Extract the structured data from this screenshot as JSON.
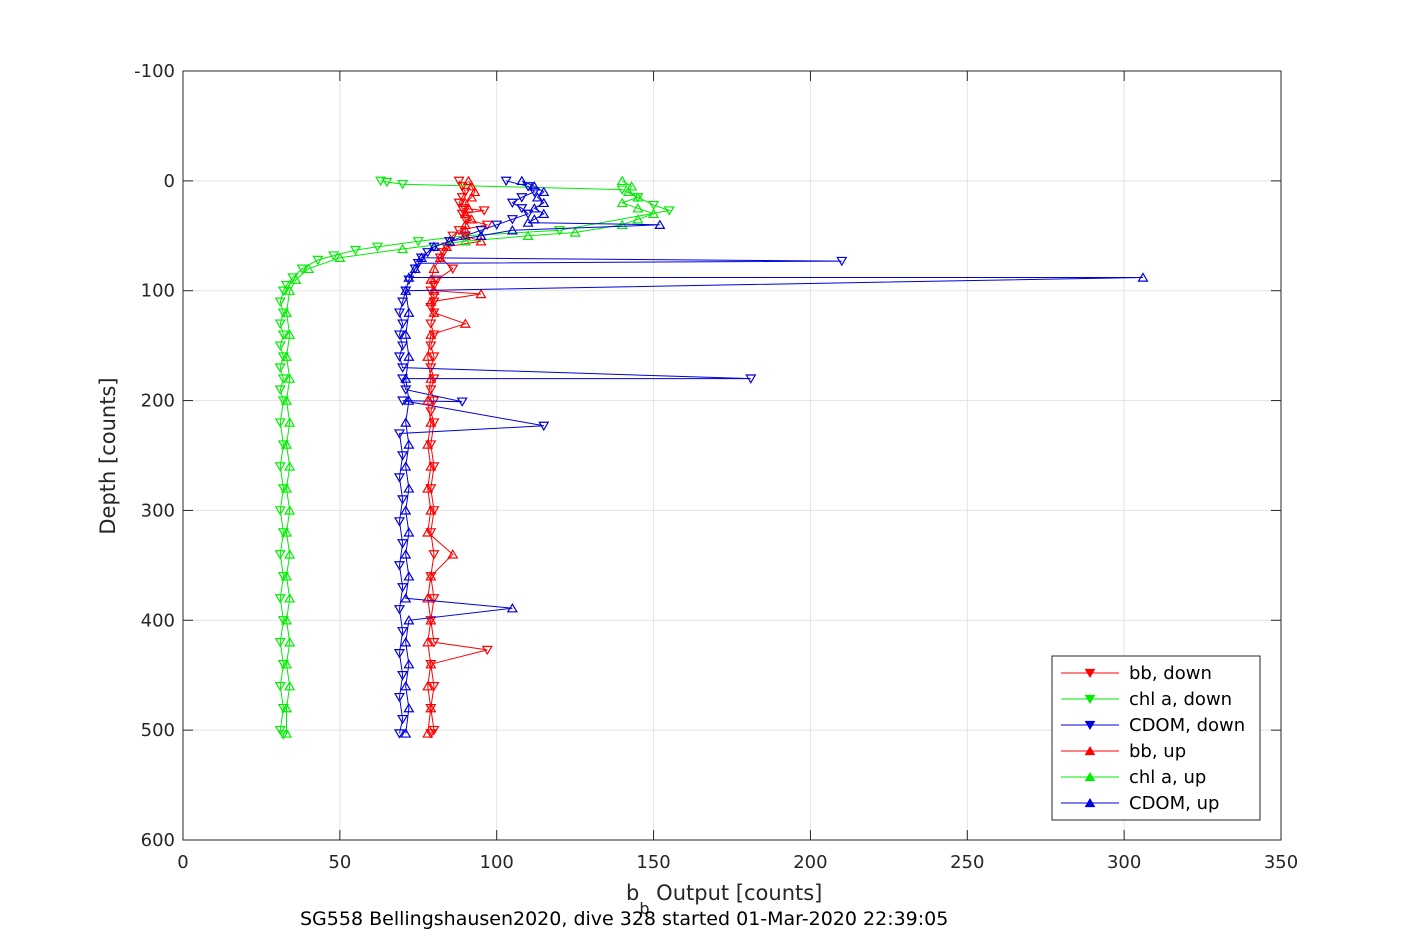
{
  "chart_data": {
    "type": "line",
    "xlabel_base": "b",
    "xlabel_sub": "b",
    "xlabel_rest": " Output [counts]",
    "ylabel": "Depth [counts]",
    "footer": "SG558 Bellingshausen2020, dive 328 started 01-Mar-2020 22:39:05",
    "xlim": [
      0,
      350
    ],
    "ylim": [
      -100,
      600
    ],
    "y_reversed": true,
    "grid": true,
    "legend_position": "bottom-right",
    "xticks": [
      "0",
      "50",
      "100",
      "150",
      "200",
      "250",
      "300",
      "350"
    ],
    "yticks": [
      "-100",
      "0",
      "100",
      "200",
      "300",
      "400",
      "500",
      "600"
    ],
    "series": [
      {
        "name": "bb, down",
        "color": "#ff0000",
        "marker": "triangle-down",
        "points": [
          [
            88,
            0
          ],
          [
            89,
            5
          ],
          [
            90,
            10
          ],
          [
            89,
            15
          ],
          [
            88,
            20
          ],
          [
            89,
            25
          ],
          [
            96,
            27
          ],
          [
            89,
            30
          ],
          [
            90,
            35
          ],
          [
            97,
            40
          ],
          [
            88,
            45
          ],
          [
            86,
            50
          ],
          [
            85,
            55
          ],
          [
            84,
            60
          ],
          [
            83,
            65
          ],
          [
            82,
            70
          ],
          [
            86,
            80
          ],
          [
            81,
            90
          ],
          [
            80,
            95
          ],
          [
            79,
            100
          ],
          [
            80,
            105
          ],
          [
            80,
            110
          ],
          [
            79,
            115
          ],
          [
            80,
            120
          ],
          [
            79,
            130
          ],
          [
            80,
            140
          ],
          [
            79,
            150
          ],
          [
            80,
            160
          ],
          [
            79,
            170
          ],
          [
            80,
            180
          ],
          [
            79,
            190
          ],
          [
            80,
            200
          ],
          [
            79,
            210
          ],
          [
            80,
            220
          ],
          [
            79,
            240
          ],
          [
            80,
            260
          ],
          [
            79,
            280
          ],
          [
            80,
            300
          ],
          [
            79,
            320
          ],
          [
            80,
            340
          ],
          [
            79,
            360
          ],
          [
            80,
            380
          ],
          [
            79,
            400
          ],
          [
            80,
            420
          ],
          [
            97,
            427
          ],
          [
            79,
            440
          ],
          [
            80,
            460
          ],
          [
            79,
            480
          ],
          [
            80,
            500
          ],
          [
            79,
            503
          ]
        ]
      },
      {
        "name": "chl a, down",
        "color": "#00ee00",
        "marker": "triangle-down",
        "points": [
          [
            63,
            0
          ],
          [
            65,
            1
          ],
          [
            70,
            3
          ],
          [
            140,
            8
          ],
          [
            145,
            15
          ],
          [
            150,
            22
          ],
          [
            155,
            27
          ],
          [
            120,
            45
          ],
          [
            90,
            50
          ],
          [
            75,
            55
          ],
          [
            62,
            60
          ],
          [
            55,
            63
          ],
          [
            48,
            68
          ],
          [
            43,
            72
          ],
          [
            38,
            80
          ],
          [
            35,
            88
          ],
          [
            33,
            95
          ],
          [
            32,
            100
          ],
          [
            31,
            110
          ],
          [
            32,
            120
          ],
          [
            31,
            130
          ],
          [
            32,
            140
          ],
          [
            31,
            150
          ],
          [
            32,
            160
          ],
          [
            31,
            170
          ],
          [
            32,
            180
          ],
          [
            31,
            190
          ],
          [
            32,
            200
          ],
          [
            31,
            220
          ],
          [
            32,
            240
          ],
          [
            31,
            260
          ],
          [
            32,
            280
          ],
          [
            31,
            300
          ],
          [
            32,
            320
          ],
          [
            31,
            340
          ],
          [
            32,
            360
          ],
          [
            31,
            380
          ],
          [
            32,
            400
          ],
          [
            31,
            420
          ],
          [
            32,
            440
          ],
          [
            31,
            460
          ],
          [
            32,
            480
          ],
          [
            31,
            500
          ],
          [
            32,
            504
          ]
        ]
      },
      {
        "name": "CDOM, down",
        "color": "#0000dd",
        "marker": "triangle-down",
        "points": [
          [
            103,
            0
          ],
          [
            110,
            5
          ],
          [
            112,
            10
          ],
          [
            108,
            15
          ],
          [
            105,
            20
          ],
          [
            108,
            25
          ],
          [
            110,
            30
          ],
          [
            105,
            35
          ],
          [
            100,
            40
          ],
          [
            95,
            45
          ],
          [
            90,
            50
          ],
          [
            85,
            55
          ],
          [
            80,
            60
          ],
          [
            78,
            65
          ],
          [
            76,
            70
          ],
          [
            210,
            73
          ],
          [
            75,
            75
          ],
          [
            74,
            80
          ],
          [
            72,
            90
          ],
          [
            71,
            100
          ],
          [
            70,
            110
          ],
          [
            69,
            120
          ],
          [
            70,
            130
          ],
          [
            69,
            140
          ],
          [
            70,
            150
          ],
          [
            69,
            160
          ],
          [
            70,
            170
          ],
          [
            181,
            180
          ],
          [
            70,
            180
          ],
          [
            71,
            190
          ],
          [
            89,
            201
          ],
          [
            70,
            200
          ],
          [
            115,
            223
          ],
          [
            69,
            230
          ],
          [
            70,
            250
          ],
          [
            69,
            270
          ],
          [
            70,
            290
          ],
          [
            69,
            310
          ],
          [
            70,
            330
          ],
          [
            69,
            350
          ],
          [
            70,
            370
          ],
          [
            69,
            390
          ],
          [
            70,
            410
          ],
          [
            69,
            430
          ],
          [
            70,
            450
          ],
          [
            69,
            470
          ],
          [
            70,
            490
          ],
          [
            69,
            503
          ]
        ]
      },
      {
        "name": "bb, up",
        "color": "#ff0000",
        "marker": "triangle-up",
        "points": [
          [
            78,
            503
          ],
          [
            79,
            480
          ],
          [
            78,
            460
          ],
          [
            79,
            440
          ],
          [
            78,
            420
          ],
          [
            79,
            400
          ],
          [
            78,
            380
          ],
          [
            79,
            360
          ],
          [
            86,
            340
          ],
          [
            78,
            320
          ],
          [
            79,
            300
          ],
          [
            78,
            280
          ],
          [
            79,
            260
          ],
          [
            78,
            240
          ],
          [
            79,
            220
          ],
          [
            78,
            200
          ],
          [
            79,
            180
          ],
          [
            78,
            160
          ],
          [
            79,
            140
          ],
          [
            90,
            130
          ],
          [
            80,
            120
          ],
          [
            79,
            110
          ],
          [
            95,
            103
          ],
          [
            80,
            100
          ],
          [
            79,
            90
          ],
          [
            80,
            80
          ],
          [
            82,
            70
          ],
          [
            84,
            60
          ],
          [
            95,
            55
          ],
          [
            90,
            50
          ],
          [
            90,
            45
          ],
          [
            90,
            40
          ],
          [
            92,
            35
          ],
          [
            90,
            30
          ],
          [
            91,
            25
          ],
          [
            90,
            20
          ],
          [
            92,
            15
          ],
          [
            93,
            10
          ],
          [
            92,
            5
          ],
          [
            91,
            0
          ]
        ]
      },
      {
        "name": "chl a, up",
        "color": "#00ee00",
        "marker": "triangle-up",
        "points": [
          [
            33,
            503
          ],
          [
            33,
            480
          ],
          [
            34,
            460
          ],
          [
            33,
            440
          ],
          [
            34,
            420
          ],
          [
            33,
            400
          ],
          [
            34,
            380
          ],
          [
            33,
            360
          ],
          [
            34,
            340
          ],
          [
            33,
            320
          ],
          [
            34,
            300
          ],
          [
            33,
            280
          ],
          [
            34,
            260
          ],
          [
            33,
            240
          ],
          [
            34,
            220
          ],
          [
            33,
            200
          ],
          [
            34,
            180
          ],
          [
            33,
            160
          ],
          [
            34,
            140
          ],
          [
            33,
            120
          ],
          [
            34,
            100
          ],
          [
            36,
            90
          ],
          [
            40,
            80
          ],
          [
            50,
            70
          ],
          [
            70,
            62
          ],
          [
            90,
            55
          ],
          [
            110,
            50
          ],
          [
            125,
            47
          ],
          [
            140,
            40
          ],
          [
            145,
            35
          ],
          [
            150,
            30
          ],
          [
            145,
            25
          ],
          [
            140,
            20
          ],
          [
            145,
            15
          ],
          [
            142,
            10
          ],
          [
            143,
            5
          ],
          [
            140,
            0
          ]
        ]
      },
      {
        "name": "CDOM, up",
        "color": "#0000dd",
        "marker": "triangle-up",
        "points": [
          [
            71,
            503
          ],
          [
            72,
            480
          ],
          [
            71,
            460
          ],
          [
            72,
            440
          ],
          [
            71,
            420
          ],
          [
            72,
            400
          ],
          [
            105,
            389
          ],
          [
            71,
            380
          ],
          [
            72,
            360
          ],
          [
            71,
            340
          ],
          [
            72,
            320
          ],
          [
            71,
            300
          ],
          [
            72,
            280
          ],
          [
            71,
            260
          ],
          [
            72,
            240
          ],
          [
            71,
            220
          ],
          [
            72,
            200
          ],
          [
            71,
            180
          ],
          [
            72,
            160
          ],
          [
            71,
            140
          ],
          [
            72,
            120
          ],
          [
            71,
            100
          ],
          [
            306,
            88
          ],
          [
            72,
            88
          ],
          [
            74,
            80
          ],
          [
            76,
            70
          ],
          [
            80,
            60
          ],
          [
            85,
            55
          ],
          [
            95,
            50
          ],
          [
            105,
            45
          ],
          [
            152,
            40
          ],
          [
            110,
            38
          ],
          [
            112,
            35
          ],
          [
            115,
            30
          ],
          [
            112,
            25
          ],
          [
            115,
            20
          ],
          [
            113,
            15
          ],
          [
            115,
            10
          ],
          [
            112,
            5
          ],
          [
            108,
            0
          ]
        ]
      }
    ]
  }
}
